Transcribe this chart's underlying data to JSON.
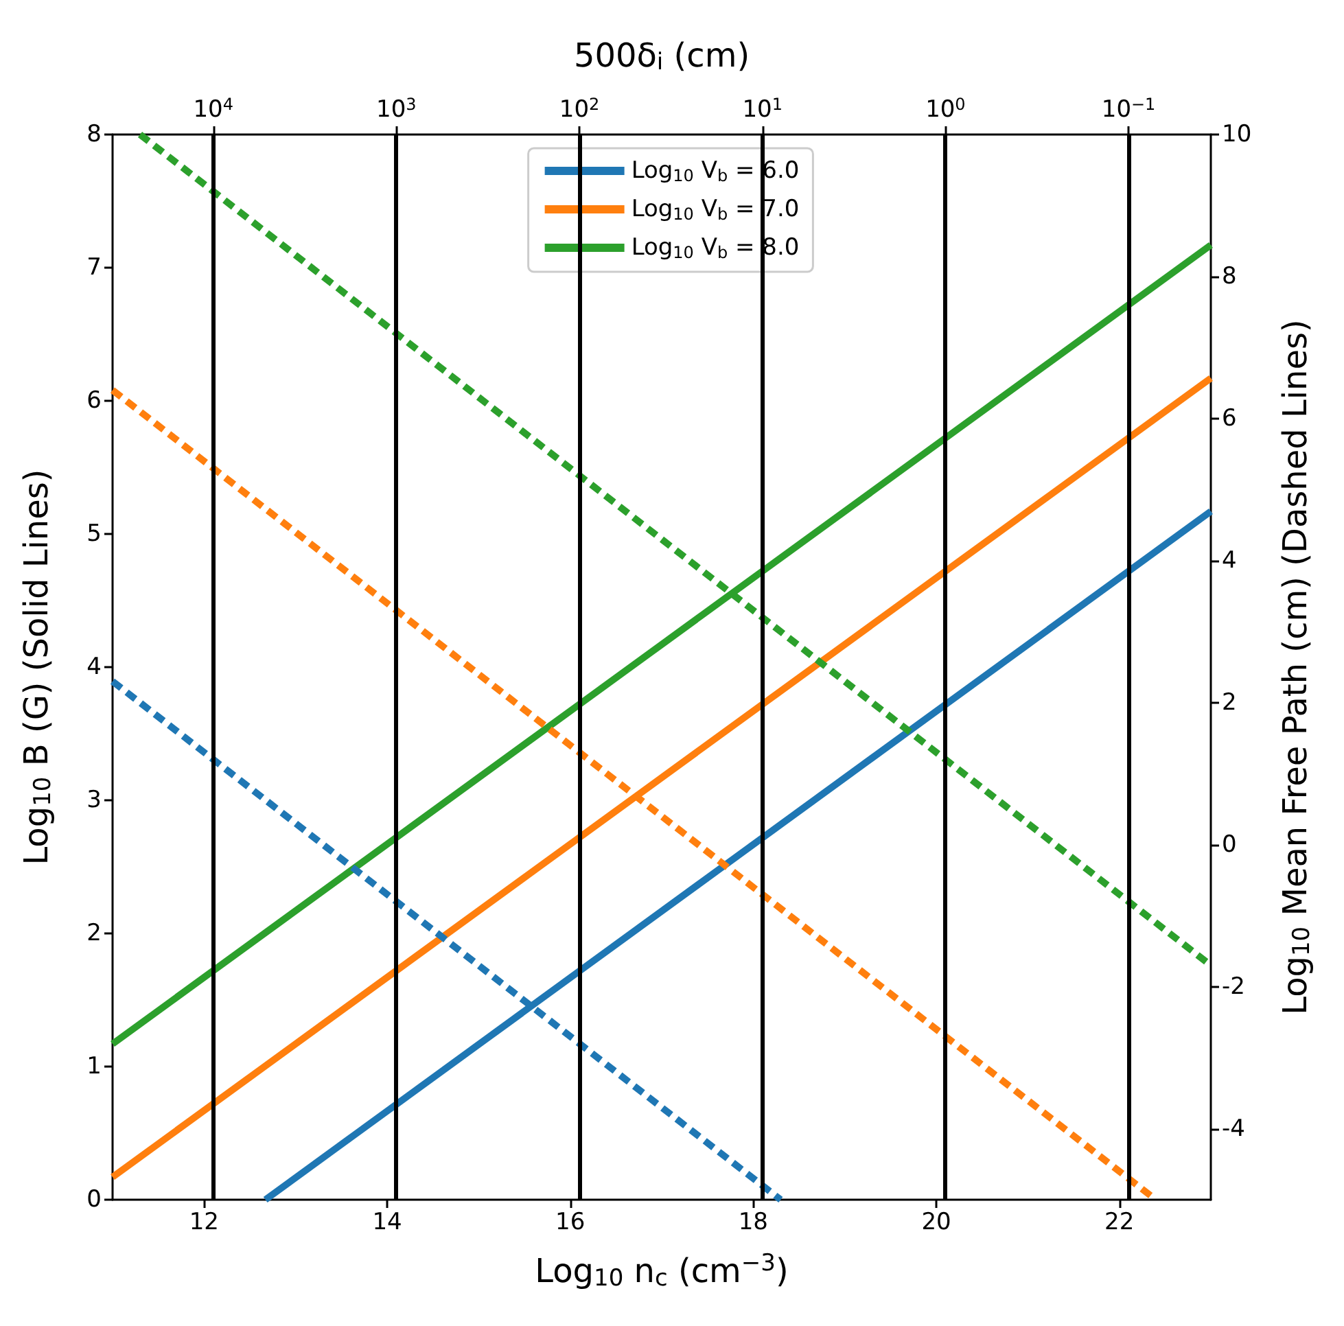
{
  "chart_data": {
    "type": "line",
    "xlabel": "Log$_{10}$ n$_{c}$ (cm$^{−3}$)",
    "ylabel": "Log$_{10}$ B (G) (Solid Lines)",
    "y2label": "Log$_{10}$ Mean Free Path (cm) (Dashed Lines)",
    "x2label": "500δ$_{i}$ (cm)",
    "xlim": [
      11,
      23
    ],
    "xticks": [
      12,
      14,
      16,
      18,
      20,
      22
    ],
    "ylim": [
      0,
      8
    ],
    "yticks": [
      0,
      1,
      2,
      3,
      4,
      5,
      6,
      7,
      8
    ],
    "y2lim": [
      -5,
      10
    ],
    "y2ticks": [
      -4,
      -2,
      0,
      2,
      4,
      6,
      8,
      10
    ],
    "x2lim": [
      35481,
      0.0355
    ],
    "x2ticks": [
      {
        "value": 10000,
        "label": "10$^{4}$"
      },
      {
        "value": 1000,
        "label": "10$^{3}$"
      },
      {
        "value": 100,
        "label": "10$^{2}$"
      },
      {
        "value": 10,
        "label": "10$^{1}$"
      },
      {
        "value": 1,
        "label": "10$^{0}$"
      },
      {
        "value": 0.1,
        "label": "10$^{−1}$"
      }
    ],
    "log": "x2",
    "marker": "none",
    "grid": false,
    "legend": "top",
    "series": [
      {
        "name": "Log$_{10}$ V$_{b}$ = 6.0",
        "color": "#1f77b4",
        "line_style": "solid",
        "x": [
          12.67,
          23
        ],
        "values": [
          0,
          5.17
        ]
      },
      {
        "name": "Log$_{10}$ V$_{b}$ = 7.0",
        "color": "#ff7f0e",
        "line_style": "solid",
        "x": [
          11,
          23
        ],
        "values": [
          0.17,
          6.17
        ]
      },
      {
        "name": "Log$_{10}$ V$_{b}$ = 8.0",
        "color": "#2ca02c",
        "line_style": "solid",
        "x": [
          11,
          23
        ],
        "values": [
          1.17,
          7.17
        ]
      },
      {
        "color": "#1f77b4",
        "line_style": "dashed",
        "axis": "y2",
        "x": [
          11,
          18.3
        ],
        "values": [
          2.3,
          -5
        ]
      },
      {
        "color": "#ff7f0e",
        "line_style": "dashed",
        "axis": "y2",
        "x": [
          11,
          22.4
        ],
        "values": [
          6.4,
          -5
        ]
      },
      {
        "color": "#2ca02c",
        "line_style": "dashed",
        "axis": "y2",
        "x": [
          11.3,
          23
        ],
        "values": [
          10,
          -1.7
        ]
      }
    ],
    "ref_lines": [
      {
        "axis": "x",
        "value": 12.1,
        "color": "#000000"
      },
      {
        "axis": "x",
        "value": 14.1,
        "color": "#000000"
      },
      {
        "axis": "x",
        "value": 16.1,
        "color": "#000000"
      },
      {
        "axis": "x",
        "value": 18.1,
        "color": "#000000"
      },
      {
        "axis": "x",
        "value": 20.1,
        "color": "#000000"
      },
      {
        "axis": "x",
        "value": 22.1,
        "color": "#000000"
      }
    ]
  }
}
